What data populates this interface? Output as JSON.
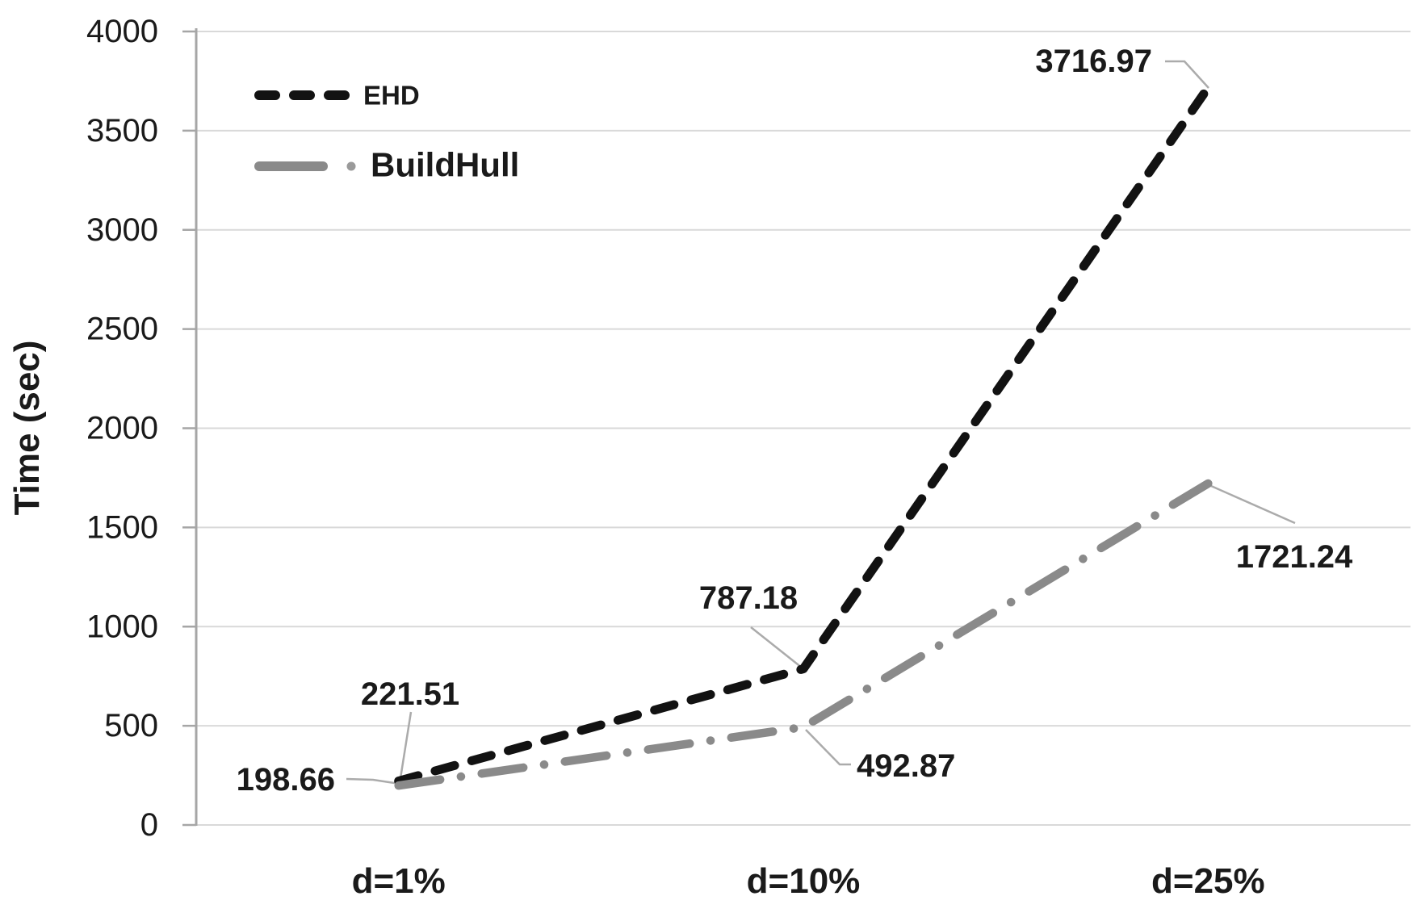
{
  "chart_data": {
    "type": "line",
    "title": "",
    "xlabel": "",
    "ylabel": "Time (sec)",
    "categories": [
      "d=1%",
      "d=10%",
      "d=25%"
    ],
    "series": [
      {
        "name": "EHD",
        "values": [
          221.51,
          787.18,
          3716.97
        ],
        "labels": [
          "221.51",
          "787.18",
          "3716.97"
        ],
        "color": "#121212",
        "dash_style": "dashed"
      },
      {
        "name": "BuildHull",
        "values": [
          198.66,
          492.87,
          1721.24
        ],
        "labels": [
          "198.66",
          "492.87",
          "1721.24"
        ],
        "color": "#8a8a8a",
        "dash_style": "long-dash-dot"
      }
    ],
    "ylim": [
      0,
      4000
    ],
    "yticks": [
      0,
      500,
      1000,
      1500,
      2000,
      2500,
      3000,
      3500,
      4000
    ],
    "grid": true,
    "legend_position": "top-left"
  },
  "colors": {
    "background": "#ffffff",
    "gridline": "#d9d9d9",
    "axis": "#a6a6a6",
    "leader_line": "#ababab",
    "text": "#1a1a1a",
    "series_ehd": "#121212",
    "series_buildhull": "#8a8a8a"
  }
}
